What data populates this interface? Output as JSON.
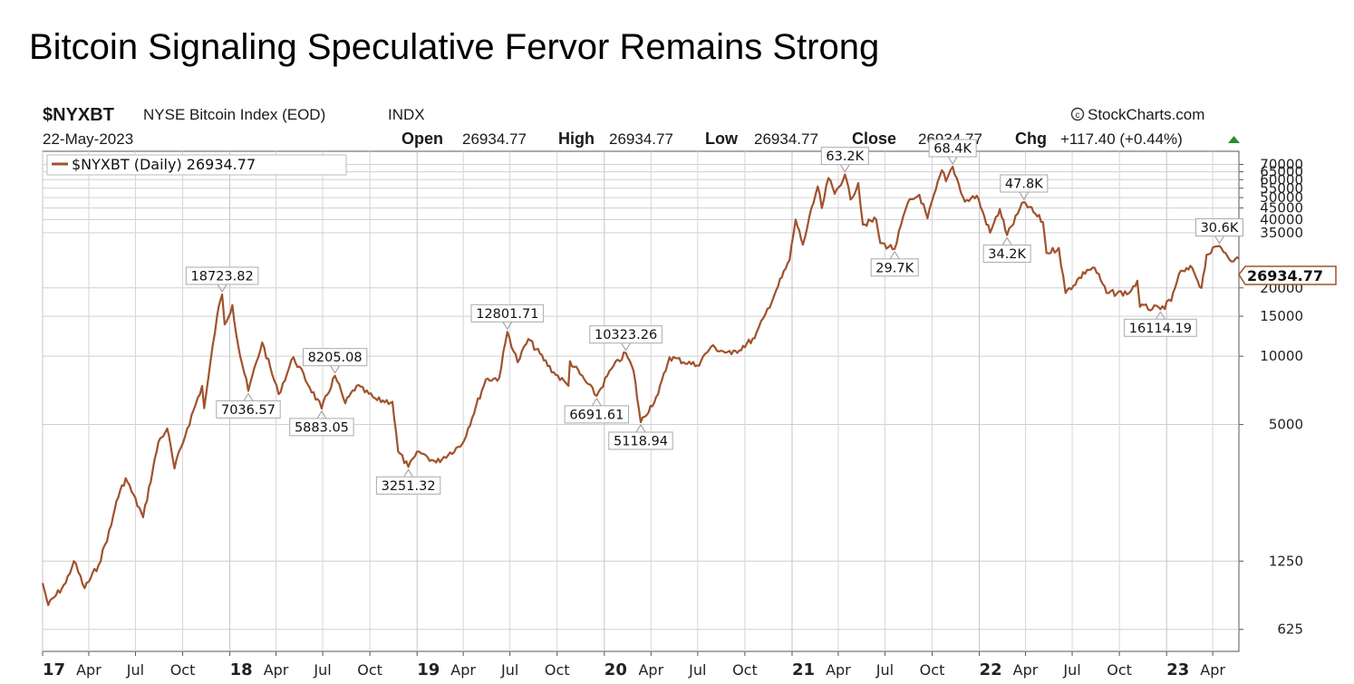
{
  "slide_title": "Bitcoin Signaling Speculative Fervor Remains Strong",
  "header": {
    "symbol": "$NYXBT",
    "name": "NYSE Bitcoin Index (EOD)",
    "exchange": "INDX",
    "source": "StockCharts.com",
    "date": "22-May-2023",
    "open_label": "Open",
    "open": "26934.77",
    "high_label": "High",
    "high": "26934.77",
    "low_label": "Low",
    "low": "26934.77",
    "close_label": "Close",
    "close": "26934.77",
    "chg_label": "Chg",
    "chg": "+117.40 (+0.44%)"
  },
  "colors": {
    "series": "#a0522d",
    "grid": "#d0d0d0",
    "up": "#2e8b2e"
  },
  "chart_data": {
    "type": "line",
    "log_scale": true,
    "grid": true,
    "legend_position": "top-left",
    "legend_text": "$NYXBT (Daily) 26934.77",
    "last_value_label": "26934.77",
    "x_start": "2017-01-01",
    "x_end": "2023-05-22",
    "ylim": [
      500,
      80000
    ],
    "y_ticks": [
      {
        "value": 625,
        "label": "625"
      },
      {
        "value": 1250,
        "label": "1250"
      },
      {
        "value": 5000,
        "label": "5000"
      },
      {
        "value": 10000,
        "label": "10000"
      },
      {
        "value": 15000,
        "label": "15000"
      },
      {
        "value": 20000,
        "label": "20000"
      },
      {
        "value": 35000,
        "label": "35000"
      },
      {
        "value": 40000,
        "label": "40000"
      },
      {
        "value": 45000,
        "label": "45000"
      },
      {
        "value": 50000,
        "label": "50000"
      },
      {
        "value": 55000,
        "label": "55000"
      },
      {
        "value": 60000,
        "label": "60000"
      },
      {
        "value": 65000,
        "label": "65000"
      },
      {
        "value": 70000,
        "label": "70000"
      }
    ],
    "x_ticks": [
      {
        "date": "2017-01-01",
        "label": "17",
        "bold": true
      },
      {
        "date": "2017-04-01",
        "label": "Apr"
      },
      {
        "date": "2017-07-01",
        "label": "Jul"
      },
      {
        "date": "2017-10-01",
        "label": "Oct"
      },
      {
        "date": "2018-01-01",
        "label": "18",
        "bold": true
      },
      {
        "date": "2018-04-01",
        "label": "Apr"
      },
      {
        "date": "2018-07-01",
        "label": "Jul"
      },
      {
        "date": "2018-10-01",
        "label": "Oct"
      },
      {
        "date": "2019-01-01",
        "label": "19",
        "bold": true
      },
      {
        "date": "2019-04-01",
        "label": "Apr"
      },
      {
        "date": "2019-07-01",
        "label": "Jul"
      },
      {
        "date": "2019-10-01",
        "label": "Oct"
      },
      {
        "date": "2020-01-01",
        "label": "20",
        "bold": true
      },
      {
        "date": "2020-04-01",
        "label": "Apr"
      },
      {
        "date": "2020-07-01",
        "label": "Jul"
      },
      {
        "date": "2020-10-01",
        "label": "Oct"
      },
      {
        "date": "2021-01-01",
        "label": "21",
        "bold": true
      },
      {
        "date": "2021-04-01",
        "label": "Apr"
      },
      {
        "date": "2021-07-01",
        "label": "Jul"
      },
      {
        "date": "2021-10-01",
        "label": "Oct"
      },
      {
        "date": "2022-01-01",
        "label": "22",
        "bold": true
      },
      {
        "date": "2022-04-01",
        "label": "Apr"
      },
      {
        "date": "2022-07-01",
        "label": "Jul"
      },
      {
        "date": "2022-10-01",
        "label": "Oct"
      },
      {
        "date": "2023-01-01",
        "label": "23",
        "bold": true
      },
      {
        "date": "2023-04-01",
        "label": "Apr"
      }
    ],
    "annotations": [
      {
        "date": "2017-12-17",
        "value": 18723.82,
        "label": "18723.82",
        "pos": "above"
      },
      {
        "date": "2018-02-06",
        "value": 7036.57,
        "label": "7036.57",
        "pos": "below"
      },
      {
        "date": "2018-05-05",
        "value": 9900,
        "label": "",
        "pos": "none"
      },
      {
        "date": "2018-06-29",
        "value": 5883.05,
        "label": "5883.05",
        "pos": "below"
      },
      {
        "date": "2018-07-25",
        "value": 8205.08,
        "label": "8205.08",
        "pos": "above"
      },
      {
        "date": "2018-12-15",
        "value": 3251.32,
        "label": "3251.32",
        "pos": "below"
      },
      {
        "date": "2019-06-26",
        "value": 12801.71,
        "label": "12801.71",
        "pos": "above"
      },
      {
        "date": "2019-12-17",
        "value": 6691.61,
        "label": "6691.61",
        "pos": "below"
      },
      {
        "date": "2020-02-12",
        "value": 10323.26,
        "label": "10323.26",
        "pos": "above"
      },
      {
        "date": "2020-03-12",
        "value": 5118.94,
        "label": "5118.94",
        "pos": "below"
      },
      {
        "date": "2021-04-14",
        "value": 63200,
        "label": "63.2K",
        "pos": "above"
      },
      {
        "date": "2021-07-20",
        "value": 29700,
        "label": "29.7K",
        "pos": "below"
      },
      {
        "date": "2021-11-10",
        "value": 68400,
        "label": "68.4K",
        "pos": "above"
      },
      {
        "date": "2022-02-24",
        "value": 34200,
        "label": "34.2K",
        "pos": "below"
      },
      {
        "date": "2022-03-29",
        "value": 47800,
        "label": "47.8K",
        "pos": "above"
      },
      {
        "date": "2022-12-20",
        "value": 16114.19,
        "label": "16114.19",
        "pos": "below"
      },
      {
        "date": "2023-04-14",
        "value": 30600,
        "label": "30.6K",
        "pos": "above"
      }
    ],
    "series": [
      {
        "values": [
          [
            "2017-01-01",
            1000
          ],
          [
            "2017-01-12",
            800
          ],
          [
            "2017-02-15",
            1000
          ],
          [
            "2017-03-03",
            1250
          ],
          [
            "2017-03-24",
            950
          ],
          [
            "2017-04-20",
            1200
          ],
          [
            "2017-05-15",
            1800
          ],
          [
            "2017-05-25",
            2300
          ],
          [
            "2017-06-12",
            2900
          ],
          [
            "2017-07-16",
            1950
          ],
          [
            "2017-08-15",
            4200
          ],
          [
            "2017-09-01",
            4800
          ],
          [
            "2017-09-15",
            3200
          ],
          [
            "2017-10-10",
            4800
          ],
          [
            "2017-11-08",
            7400
          ],
          [
            "2017-11-12",
            5900
          ],
          [
            "2017-12-07",
            15000
          ],
          [
            "2017-12-17",
            18723.82
          ],
          [
            "2017-12-22",
            13800
          ],
          [
            "2018-01-06",
            16800
          ],
          [
            "2018-01-17",
            11200
          ],
          [
            "2018-02-06",
            7036.57
          ],
          [
            "2018-03-05",
            11500
          ],
          [
            "2018-04-06",
            6800
          ],
          [
            "2018-05-05",
            9900
          ],
          [
            "2018-06-29",
            5883.05
          ],
          [
            "2018-07-25",
            8205.08
          ],
          [
            "2018-08-14",
            6200
          ],
          [
            "2018-09-05",
            7400
          ],
          [
            "2018-10-15",
            6400
          ],
          [
            "2018-11-14",
            6300
          ],
          [
            "2018-11-25",
            3800
          ],
          [
            "2018-12-15",
            3251.32
          ],
          [
            "2019-01-05",
            3800
          ],
          [
            "2019-02-07",
            3400
          ],
          [
            "2019-03-30",
            4100
          ],
          [
            "2019-05-15",
            7900
          ],
          [
            "2019-06-10",
            8000
          ],
          [
            "2019-06-26",
            12801.71
          ],
          [
            "2019-07-16",
            9400
          ],
          [
            "2019-08-06",
            11900
          ],
          [
            "2019-09-24",
            8500
          ],
          [
            "2019-10-23",
            7400
          ],
          [
            "2019-10-26",
            9500
          ],
          [
            "2019-12-17",
            6691.61
          ],
          [
            "2020-01-15",
            8800
          ],
          [
            "2020-02-12",
            10323.26
          ],
          [
            "2020-02-27",
            8600
          ],
          [
            "2020-03-12",
            5118.94
          ],
          [
            "2020-04-15",
            6800
          ],
          [
            "2020-05-07",
            9900
          ],
          [
            "2020-06-30",
            9100
          ],
          [
            "2020-07-27",
            11000
          ],
          [
            "2020-09-05",
            10200
          ],
          [
            "2020-10-20",
            12000
          ],
          [
            "2020-11-10",
            15300
          ],
          [
            "2020-12-01",
            19500
          ],
          [
            "2020-12-27",
            26500
          ],
          [
            "2021-01-08",
            40000
          ],
          [
            "2021-01-22",
            31000
          ],
          [
            "2021-02-20",
            56000
          ],
          [
            "2021-02-28",
            45000
          ],
          [
            "2021-03-13",
            61000
          ],
          [
            "2021-03-25",
            52000
          ],
          [
            "2021-04-14",
            63200
          ],
          [
            "2021-04-25",
            49000
          ],
          [
            "2021-05-10",
            58000
          ],
          [
            "2021-05-19",
            38000
          ],
          [
            "2021-06-14",
            40000
          ],
          [
            "2021-06-22",
            31500
          ],
          [
            "2021-07-20",
            29700
          ],
          [
            "2021-08-14",
            47000
          ],
          [
            "2021-09-06",
            51500
          ],
          [
            "2021-09-22",
            40500
          ],
          [
            "2021-10-20",
            66000
          ],
          [
            "2021-10-28",
            59000
          ],
          [
            "2021-11-10",
            68400
          ],
          [
            "2021-12-04",
            48000
          ],
          [
            "2021-12-27",
            51000
          ],
          [
            "2022-01-22",
            35000
          ],
          [
            "2022-02-10",
            44500
          ],
          [
            "2022-02-24",
            34200
          ],
          [
            "2022-03-29",
            47800
          ],
          [
            "2022-05-05",
            39000
          ],
          [
            "2022-05-12",
            28500
          ],
          [
            "2022-06-05",
            30000
          ],
          [
            "2022-06-18",
            19000
          ],
          [
            "2022-07-30",
            24000
          ],
          [
            "2022-08-14",
            24500
          ],
          [
            "2022-09-06",
            19000
          ],
          [
            "2022-10-20",
            19000
          ],
          [
            "2022-11-05",
            21500
          ],
          [
            "2022-11-10",
            16500
          ],
          [
            "2022-12-20",
            16114.19
          ],
          [
            "2023-01-10",
            17500
          ],
          [
            "2023-01-25",
            23000
          ],
          [
            "2023-02-20",
            24500
          ],
          [
            "2023-03-10",
            20000
          ],
          [
            "2023-03-20",
            28000
          ],
          [
            "2023-04-14",
            30600
          ],
          [
            "2023-05-12",
            26200
          ],
          [
            "2023-05-22",
            26934.77
          ]
        ]
      }
    ]
  }
}
